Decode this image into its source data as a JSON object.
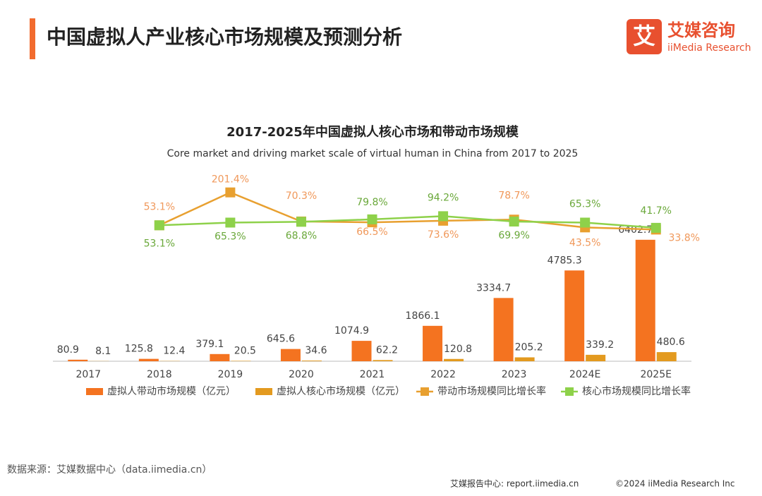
{
  "header": {
    "title": "中国虚拟人产业核心市场规模及预测分析",
    "logo_cn": "艾媒咨询",
    "logo_en": "iiMedia Research"
  },
  "chart_data": {
    "type": "bar",
    "title": "2017-2025年中国虚拟人核心市场和带动市场规模",
    "subtitle": "Core market and driving market scale of virtual human in China from 2017 to 2025",
    "categories": [
      "2017",
      "2018",
      "2019",
      "2020",
      "2021",
      "2022",
      "2023",
      "2024E",
      "2025E"
    ],
    "ylim": [
      0,
      9000
    ],
    "y2lim": [
      -560,
      210
    ],
    "series": [
      {
        "name": "虚拟人带动市场规模（亿元）",
        "type": "bar",
        "color": "#f47320",
        "values": [
          80.9,
          125.8,
          379.1,
          645.6,
          1074.9,
          1866.1,
          3334.7,
          4785.3,
          6402.7
        ]
      },
      {
        "name": "虚拟人核心市场规模（亿元）",
        "type": "bar",
        "color": "#e39a1f",
        "values": [
          8.1,
          12.4,
          20.5,
          34.6,
          62.2,
          120.8,
          205.2,
          339.2,
          480.6
        ]
      },
      {
        "name": "带动市场规模同比增长率",
        "type": "line",
        "axis": "y2",
        "color": "#e8a030",
        "label_color": "#f0985a",
        "values": [
          null,
          53.1,
          201.4,
          70.3,
          66.5,
          73.6,
          78.7,
          43.5,
          33.8
        ],
        "value_labels": [
          null,
          "53.1%",
          "201.4%",
          "70.3%",
          "66.5%",
          "73.6%",
          "78.7%",
          "43.5%",
          "33.8%"
        ]
      },
      {
        "name": "核心市场规模同比增长率",
        "type": "line",
        "axis": "y2",
        "color": "#8ed14a",
        "label_color": "#6aa83a",
        "values": [
          null,
          53.1,
          65.3,
          68.8,
          79.8,
          94.2,
          69.9,
          65.3,
          41.7
        ],
        "value_labels": [
          null,
          "53.1%",
          "65.3%",
          "68.8%",
          "79.8%",
          "94.2%",
          "69.9%",
          "65.3%",
          "41.7%"
        ]
      }
    ]
  },
  "footer": {
    "source": "数据来源：艾媒数据中心（data.iimedia.cn）",
    "report": "艾媒报告中心: report.iimedia.cn",
    "copyright": "©2024 iiMedia Research Inc"
  }
}
